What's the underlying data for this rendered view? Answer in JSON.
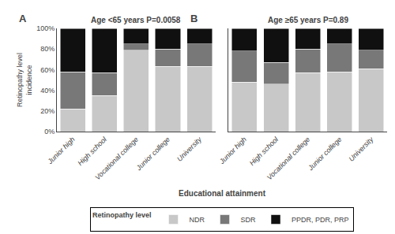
{
  "chart_data": [
    {
      "type": "bar",
      "stacked": true,
      "title": "Age <65 years P=0.0058",
      "annotations": [
        "A"
      ],
      "categories": [
        "Junior high",
        "High school",
        "Vocational college",
        "Junior college",
        "University"
      ],
      "series": [
        {
          "name": "NDR",
          "color": "#c8c8c8",
          "values": [
            22,
            35,
            79,
            63,
            63
          ]
        },
        {
          "name": "SDR",
          "color": "#787878",
          "values": [
            36,
            22,
            6,
            17,
            22
          ]
        },
        {
          "name": "PPDR, PDR, PRP",
          "color": "#101010",
          "values": [
            42,
            43,
            15,
            20,
            15
          ]
        }
      ],
      "ylabel": "Retinopathy level\nincidence",
      "xlabel": "Educational attainment",
      "ylim": [
        0,
        100
      ],
      "yticks": [
        {
          "value": 0,
          "label": "0%"
        },
        {
          "value": 20,
          "label": "20%"
        },
        {
          "value": 40,
          "label": "40%"
        },
        {
          "value": 60,
          "label": "60%"
        },
        {
          "value": 80,
          "label": "80%"
        },
        {
          "value": 100,
          "label": "100%"
        }
      ],
      "grid": false,
      "legend": "bottom",
      "legend_title": "Retinopathy level"
    },
    {
      "type": "bar",
      "stacked": true,
      "title": "Age ≥65 years P=0.89",
      "annotations": [
        "B"
      ],
      "categories": [
        "Junior high",
        "High school",
        "Vocational college",
        "Junior college",
        "University"
      ],
      "series": [
        {
          "name": "NDR",
          "color": "#c8c8c8",
          "values": [
            48,
            46,
            57,
            58,
            61
          ]
        },
        {
          "name": "SDR",
          "color": "#787878",
          "values": [
            30,
            21,
            23,
            27,
            18
          ]
        },
        {
          "name": "PPDR, PDR, PRP",
          "color": "#101010",
          "values": [
            22,
            33,
            20,
            15,
            21
          ]
        }
      ],
      "ylim": [
        0,
        100
      ],
      "yticks": [
        0,
        20,
        40,
        60,
        80,
        100
      ],
      "grid": false,
      "tick_labels": "x"
    }
  ]
}
